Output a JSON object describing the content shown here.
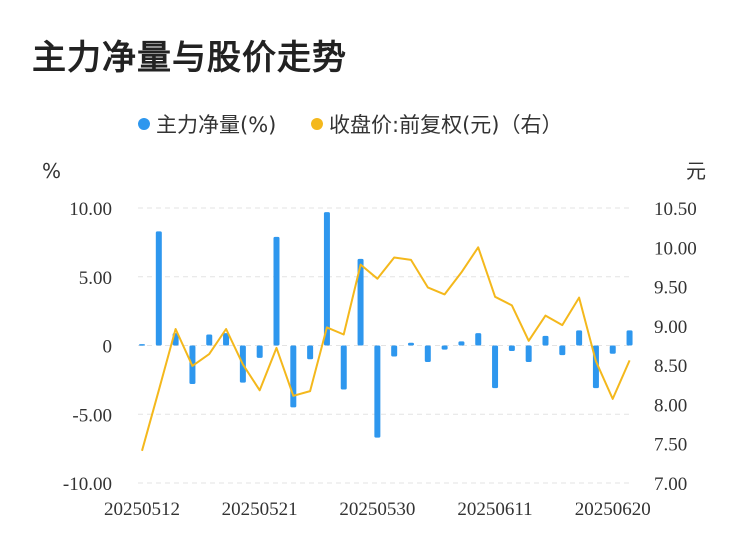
{
  "title": "主力净量与股价走势",
  "legend": {
    "bar_label": "主力净量(%)",
    "line_label": "收盘价:前复权(元)（右）"
  },
  "axes": {
    "left_unit": "%",
    "right_unit": "元",
    "left_ticks": [
      "10.00",
      "5.00",
      "0",
      "-5.00",
      "-10.00"
    ],
    "right_ticks": [
      "10.50",
      "10.00",
      "9.50",
      "9.00",
      "8.50",
      "8.00",
      "7.50",
      "7.00"
    ],
    "x_ticks": [
      "20250512",
      "20250521",
      "20250530",
      "20250611",
      "20250620"
    ]
  },
  "colors": {
    "bar": "#2e97ee",
    "line": "#f4b81c",
    "grid": "#e3e3e3"
  },
  "chart_data": {
    "type": "bar+line",
    "title": "主力净量与股价走势",
    "x": [
      "20250512",
      "20250513",
      "20250514",
      "20250515",
      "20250516",
      "20250519",
      "20250520",
      "20250521",
      "20250522",
      "20250523",
      "20250526",
      "20250527",
      "20250528",
      "20250529",
      "20250530",
      "20250603",
      "20250604",
      "20250605",
      "20250606",
      "20250609",
      "20250610",
      "20250611",
      "20250612",
      "20250613",
      "20250616",
      "20250617",
      "20250618",
      "20250619",
      "20250620",
      "20250623"
    ],
    "x_tick_labels": [
      "20250512",
      "20250521",
      "20250530",
      "20250611",
      "20250620"
    ],
    "series": [
      {
        "name": "主力净量(%)",
        "type": "bar",
        "axis": "left",
        "values": [
          0.1,
          8.3,
          0.9,
          -2.8,
          0.8,
          0.9,
          -2.7,
          -0.9,
          7.9,
          -4.5,
          -1.0,
          9.7,
          -3.2,
          6.3,
          -6.7,
          -0.8,
          0.2,
          -1.2,
          -0.3,
          0.3,
          0.9,
          -3.1,
          -0.4,
          -1.2,
          0.7,
          -0.7,
          1.1,
          -3.1,
          -0.6,
          1.1
        ]
      },
      {
        "name": "收盘价:前复权(元)（右）",
        "type": "line",
        "axis": "right",
        "values": [
          7.41,
          8.18,
          8.96,
          8.49,
          8.64,
          8.96,
          8.51,
          8.18,
          8.72,
          8.11,
          8.17,
          8.98,
          8.89,
          9.78,
          9.6,
          9.87,
          9.84,
          9.49,
          9.4,
          9.68,
          10.0,
          9.37,
          9.26,
          8.81,
          9.13,
          9.01,
          9.36,
          8.55,
          8.07,
          8.56
        ]
      }
    ],
    "ylim_left": [
      -10,
      10
    ],
    "ylim_right": [
      7.0,
      10.5
    ],
    "grid": true,
    "legend_position": "top-center"
  }
}
